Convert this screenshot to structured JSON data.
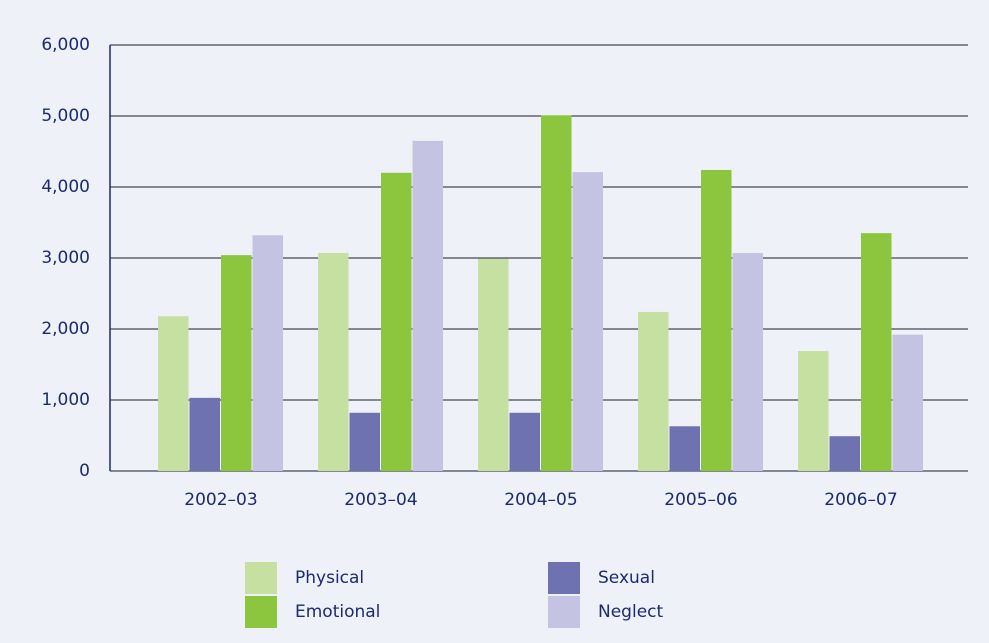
{
  "chart_data": {
    "type": "bar",
    "categories": [
      "2002–03",
      "2003–04",
      "2004–05",
      "2005–06",
      "2006–07"
    ],
    "series": [
      {
        "name": "Physical",
        "color": "#c5e0a0",
        "values": [
          2180,
          3070,
          2990,
          2240,
          1690
        ]
      },
      {
        "name": "Sexual",
        "color": "#6e72b0",
        "values": [
          1030,
          820,
          820,
          630,
          490
        ]
      },
      {
        "name": "Emotional",
        "color": "#8cc63f",
        "values": [
          3040,
          4200,
          5010,
          4240,
          3350
        ]
      },
      {
        "name": "Neglect",
        "color": "#c4c4e2",
        "values": [
          3320,
          4650,
          4210,
          3070,
          1920
        ]
      }
    ],
    "ylim": [
      0,
      6000
    ],
    "yticks": [
      0,
      {
        "value": 1000,
        "label": "1,000"
      },
      {
        "value": 2000,
        "label": "2,000"
      },
      {
        "value": 3000,
        "label": "3,000"
      },
      {
        "value": 4000,
        "label": "4,000"
      },
      {
        "value": 5000,
        "label": "5,000"
      },
      {
        "value": 6000,
        "label": "6,000"
      }
    ],
    "grid": true,
    "legend": "bottom"
  }
}
